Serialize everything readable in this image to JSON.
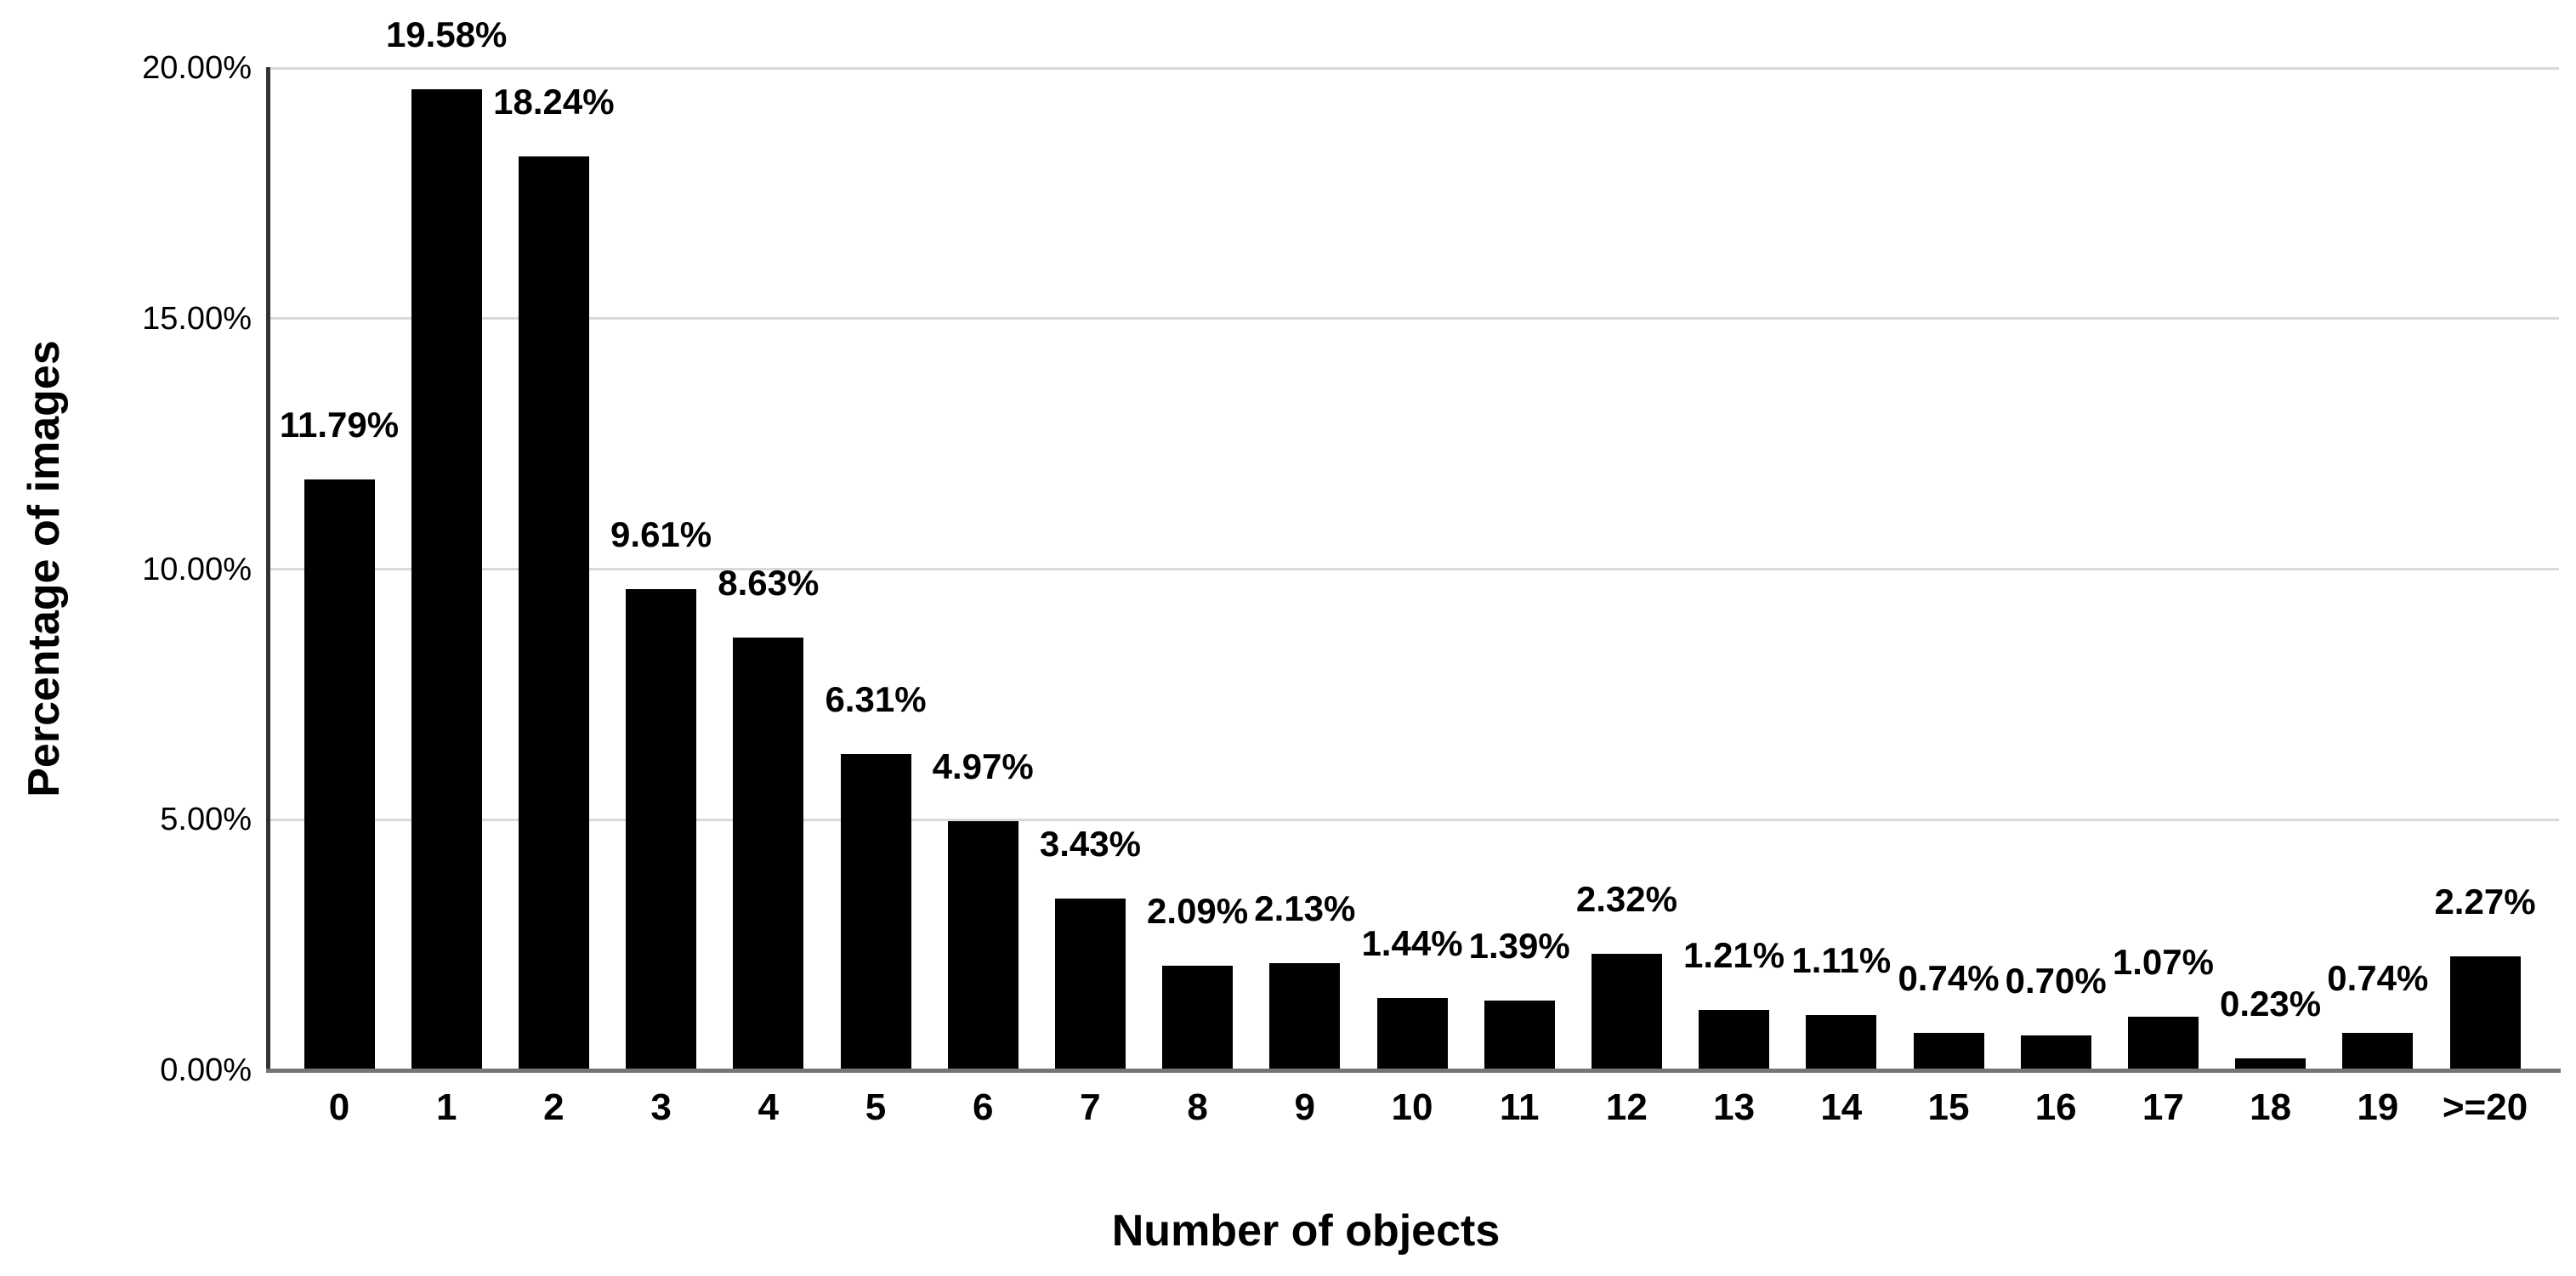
{
  "chart_data": {
    "type": "bar",
    "title": "",
    "xlabel": "Number of objects",
    "ylabel": "Percentage of images",
    "categories": [
      "0",
      "1",
      "2",
      "3",
      "4",
      "5",
      "6",
      "7",
      "8",
      "9",
      "10",
      "11",
      "12",
      "13",
      "14",
      "15",
      "16",
      "17",
      "18",
      "19",
      ">=20"
    ],
    "values": [
      11.79,
      19.58,
      18.24,
      9.61,
      8.63,
      6.31,
      4.97,
      3.43,
      2.09,
      2.13,
      1.44,
      1.39,
      2.32,
      1.21,
      1.11,
      0.74,
      0.7,
      1.07,
      0.23,
      0.74,
      2.27
    ],
    "data_labels": [
      "11.79%",
      "19.58%",
      "18.24%",
      "9.61%",
      "8.63%",
      "6.31%",
      "4.97%",
      "3.43%",
      "2.09%",
      "2.13%",
      "1.44%",
      "1.39%",
      "2.32%",
      "1.21%",
      "1.11%",
      "0.74%",
      "0.70%",
      "1.07%",
      "0.23%",
      "0.74%",
      "2.27%"
    ],
    "ylim": [
      0,
      20
    ],
    "yticks": [
      {
        "value": 20,
        "label": "20.00%"
      },
      {
        "value": 15,
        "label": "15.00%"
      },
      {
        "value": 10,
        "label": "10.00%"
      },
      {
        "value": 5,
        "label": "5.00%"
      },
      {
        "value": 0,
        "label": "0.00%"
      }
    ],
    "grid": true,
    "legend_position": "none",
    "bar_color": "#000000",
    "gridline_color": "#d9d9d9",
    "axis_line_color": "#333333",
    "baseline_color": "#757575",
    "background_color": "#ffffff"
  }
}
